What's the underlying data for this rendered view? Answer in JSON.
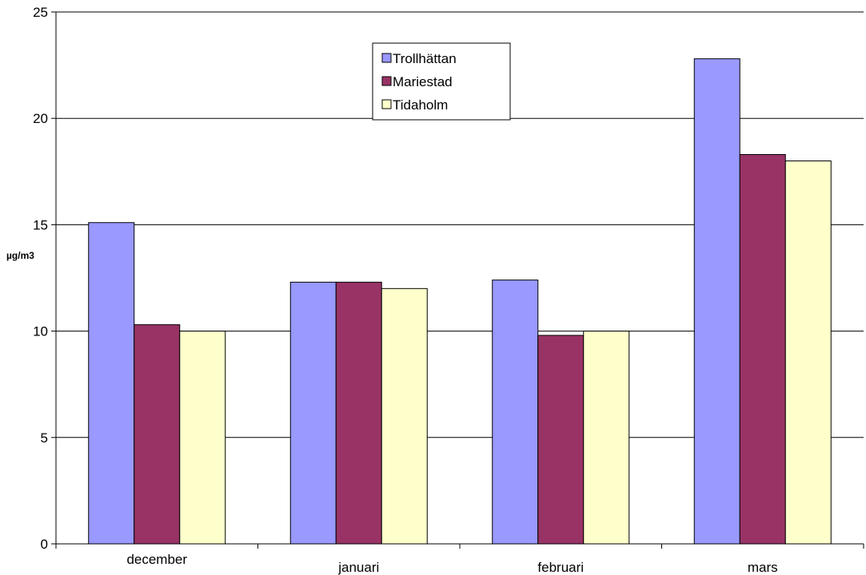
{
  "chart_data": {
    "type": "bar",
    "title": "",
    "xlabel": "",
    "ylabel": "µg/m3",
    "ylim": [
      0,
      25
    ],
    "yticks": [
      "0",
      "5",
      "10",
      "15",
      "20",
      "25"
    ],
    "grid": true,
    "legend": "top-center",
    "categories": [
      "december",
      "januari",
      "februari",
      "mars"
    ],
    "series": [
      {
        "name": "Trollhättan",
        "color": "#9999FF",
        "values": [
          15.1,
          12.3,
          12.4,
          22.8
        ]
      },
      {
        "name": "Mariestad",
        "color": "#993366",
        "values": [
          10.3,
          12.3,
          9.8,
          18.3
        ]
      },
      {
        "name": "Tidaholm",
        "color": "#FFFFCC",
        "values": [
          10.0,
          12.0,
          10.0,
          18.0
        ]
      }
    ]
  }
}
